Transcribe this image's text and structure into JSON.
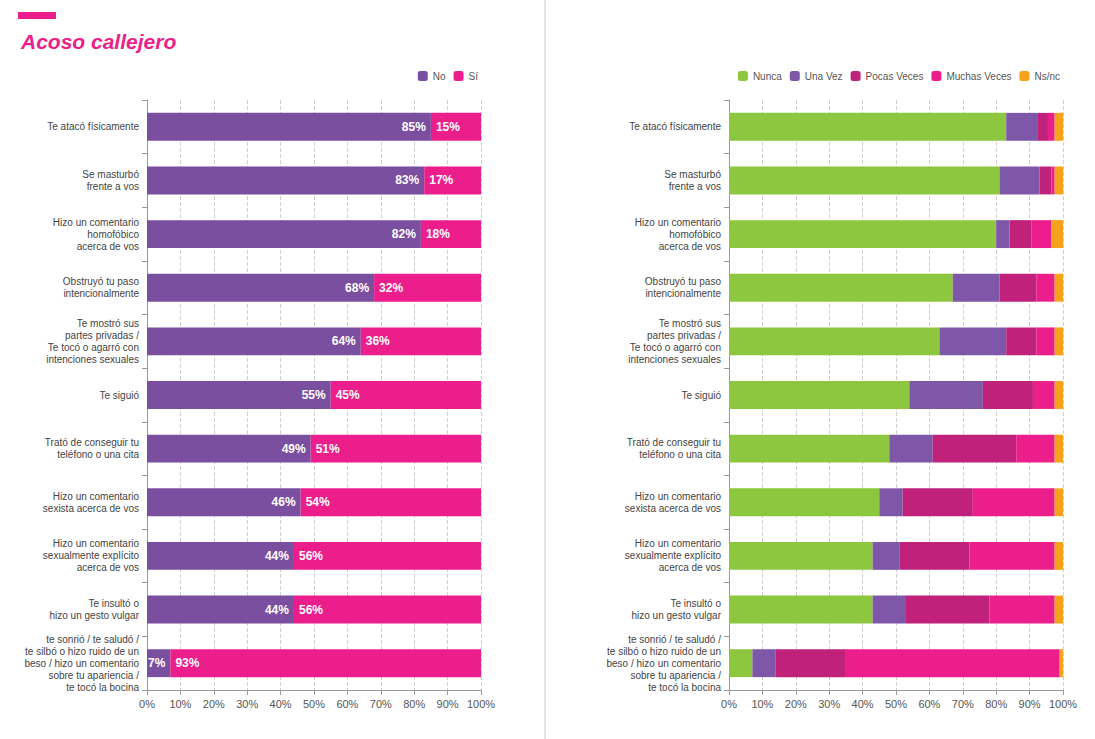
{
  "chart_data": [
    {
      "type": "bar",
      "title": "Acoso callejero",
      "orientation": "horizontal",
      "stacked": true,
      "grid": true,
      "data_labels": true,
      "legend": "top-right",
      "categories": [
        "Te atacó físicamente",
        "Se masturbó\nfrente a vos",
        "Hizo un comentario\nhomofóbico\nacerca de vos",
        "Obstruyó tu paso\nintencionalmente",
        "Te mostró sus\npartes privadas /\nTe tocó o agarró con\nintenciones sexuales",
        "Te siguió",
        "Trató de conseguir tu\nteléfono o una cita",
        "Hizo un comentario\nsexista acerca de vos",
        "Hizo un comentario\nsexualmente explícito\nacerca de vos",
        "Te insultó o\nhizo un gesto vulgar",
        "te sonrió / te saludó /\nte silbó o hizo ruido de un\nbeso / hizo un comentario\nsobre tu apariencia /\nte tocó la bocina"
      ],
      "series": [
        {
          "name": "No",
          "color": "#7b4fa0",
          "values": [
            85,
            83,
            82,
            68,
            64,
            55,
            49,
            46,
            44,
            44,
            7
          ],
          "value_labels": [
            "85%",
            "83%",
            "82%",
            "68%",
            "64%",
            "55%",
            "49%",
            "46%",
            "44%",
            "44%",
            "7%"
          ]
        },
        {
          "name": "Sí",
          "color": "#ec1e8c",
          "values": [
            15,
            17,
            18,
            32,
            36,
            45,
            51,
            54,
            56,
            56,
            93
          ],
          "value_labels": [
            "15%",
            "17%",
            "18%",
            "32%",
            "36%",
            "45%",
            "51%",
            "54%",
            "56%",
            "56%",
            "93%"
          ]
        }
      ],
      "xlim": [
        0,
        100
      ],
      "xticks": [
        {
          "value": 0,
          "label": "0%"
        },
        {
          "value": 10,
          "label": "10%"
        },
        {
          "value": 20,
          "label": "20%"
        },
        {
          "value": 30,
          "label": "30%"
        },
        {
          "value": 40,
          "label": "40%"
        },
        {
          "value": 50,
          "label": "50%"
        },
        {
          "value": 60,
          "label": "60%"
        },
        {
          "value": 70,
          "label": "70%"
        },
        {
          "value": 80,
          "label": "80%"
        },
        {
          "value": 90,
          "label": "90%"
        },
        {
          "value": 100,
          "label": "100%"
        }
      ]
    },
    {
      "type": "bar",
      "orientation": "horizontal",
      "stacked": true,
      "grid": true,
      "data_labels": false,
      "legend": "top-right",
      "categories": [
        "Te atacó físicamente",
        "Se masturbó\nfrente a vos",
        "Hizo un comentario\nhomofóbico\nacerca de vos",
        "Obstruyó tu paso\nintencionalmente",
        "Te mostró sus\npartes privadas /\nTe tocó o agarró con\nintenciones sexuales",
        "Te siguió",
        "Trató de conseguir tu\nteléfono o una cita",
        "Hizo un comentario\nsexista acerca de vos",
        "Hizo un comentario\nsexualmente explícito\nacerca de vos",
        "Te insultó o\nhizo un gesto vulgar",
        "te sonrió / te saludó /\nte silbó o hizo ruido de un\nbeso / hizo un comentario\nsobre tu apariencia /\nte tocó la bocina"
      ],
      "series": [
        {
          "name": "Nunca",
          "color": "#8dc63f",
          "values": [
            83,
            81,
            80,
            67,
            63,
            54,
            48,
            45,
            43,
            43,
            7
          ]
        },
        {
          "name": "Una Vez",
          "color": "#7e57a8",
          "values": [
            9.5,
            12,
            4,
            14,
            20,
            22,
            13,
            7,
            8,
            10,
            7
          ]
        },
        {
          "name": "Pocas Veces",
          "color": "#c0217a",
          "values": [
            3,
            3.5,
            6.5,
            11,
            9,
            15,
            25,
            21,
            21,
            25,
            21
          ]
        },
        {
          "name": "Muchas Veces",
          "color": "#ec1e8c",
          "values": [
            2,
            1,
            6,
            5.5,
            5.5,
            6.5,
            11.5,
            24.5,
            25.5,
            19.5,
            64
          ]
        },
        {
          "name": "Ns/nc",
          "color": "#f7a21b",
          "values": [
            2.5,
            2.5,
            3.5,
            2.5,
            2.5,
            2.5,
            2.5,
            2.5,
            2.5,
            2.5,
            1
          ]
        }
      ],
      "xlim": [
        0,
        100
      ],
      "xticks": [
        {
          "value": 0,
          "label": "0%"
        },
        {
          "value": 10,
          "label": "10%"
        },
        {
          "value": 20,
          "label": "20%"
        },
        {
          "value": 30,
          "label": "30%"
        },
        {
          "value": 40,
          "label": "40%"
        },
        {
          "value": 50,
          "label": "50%"
        },
        {
          "value": 60,
          "label": "60%"
        },
        {
          "value": 70,
          "label": "70%"
        },
        {
          "value": 80,
          "label": "80%"
        },
        {
          "value": 90,
          "label": "90%"
        },
        {
          "value": 100,
          "label": "100%"
        }
      ]
    }
  ]
}
